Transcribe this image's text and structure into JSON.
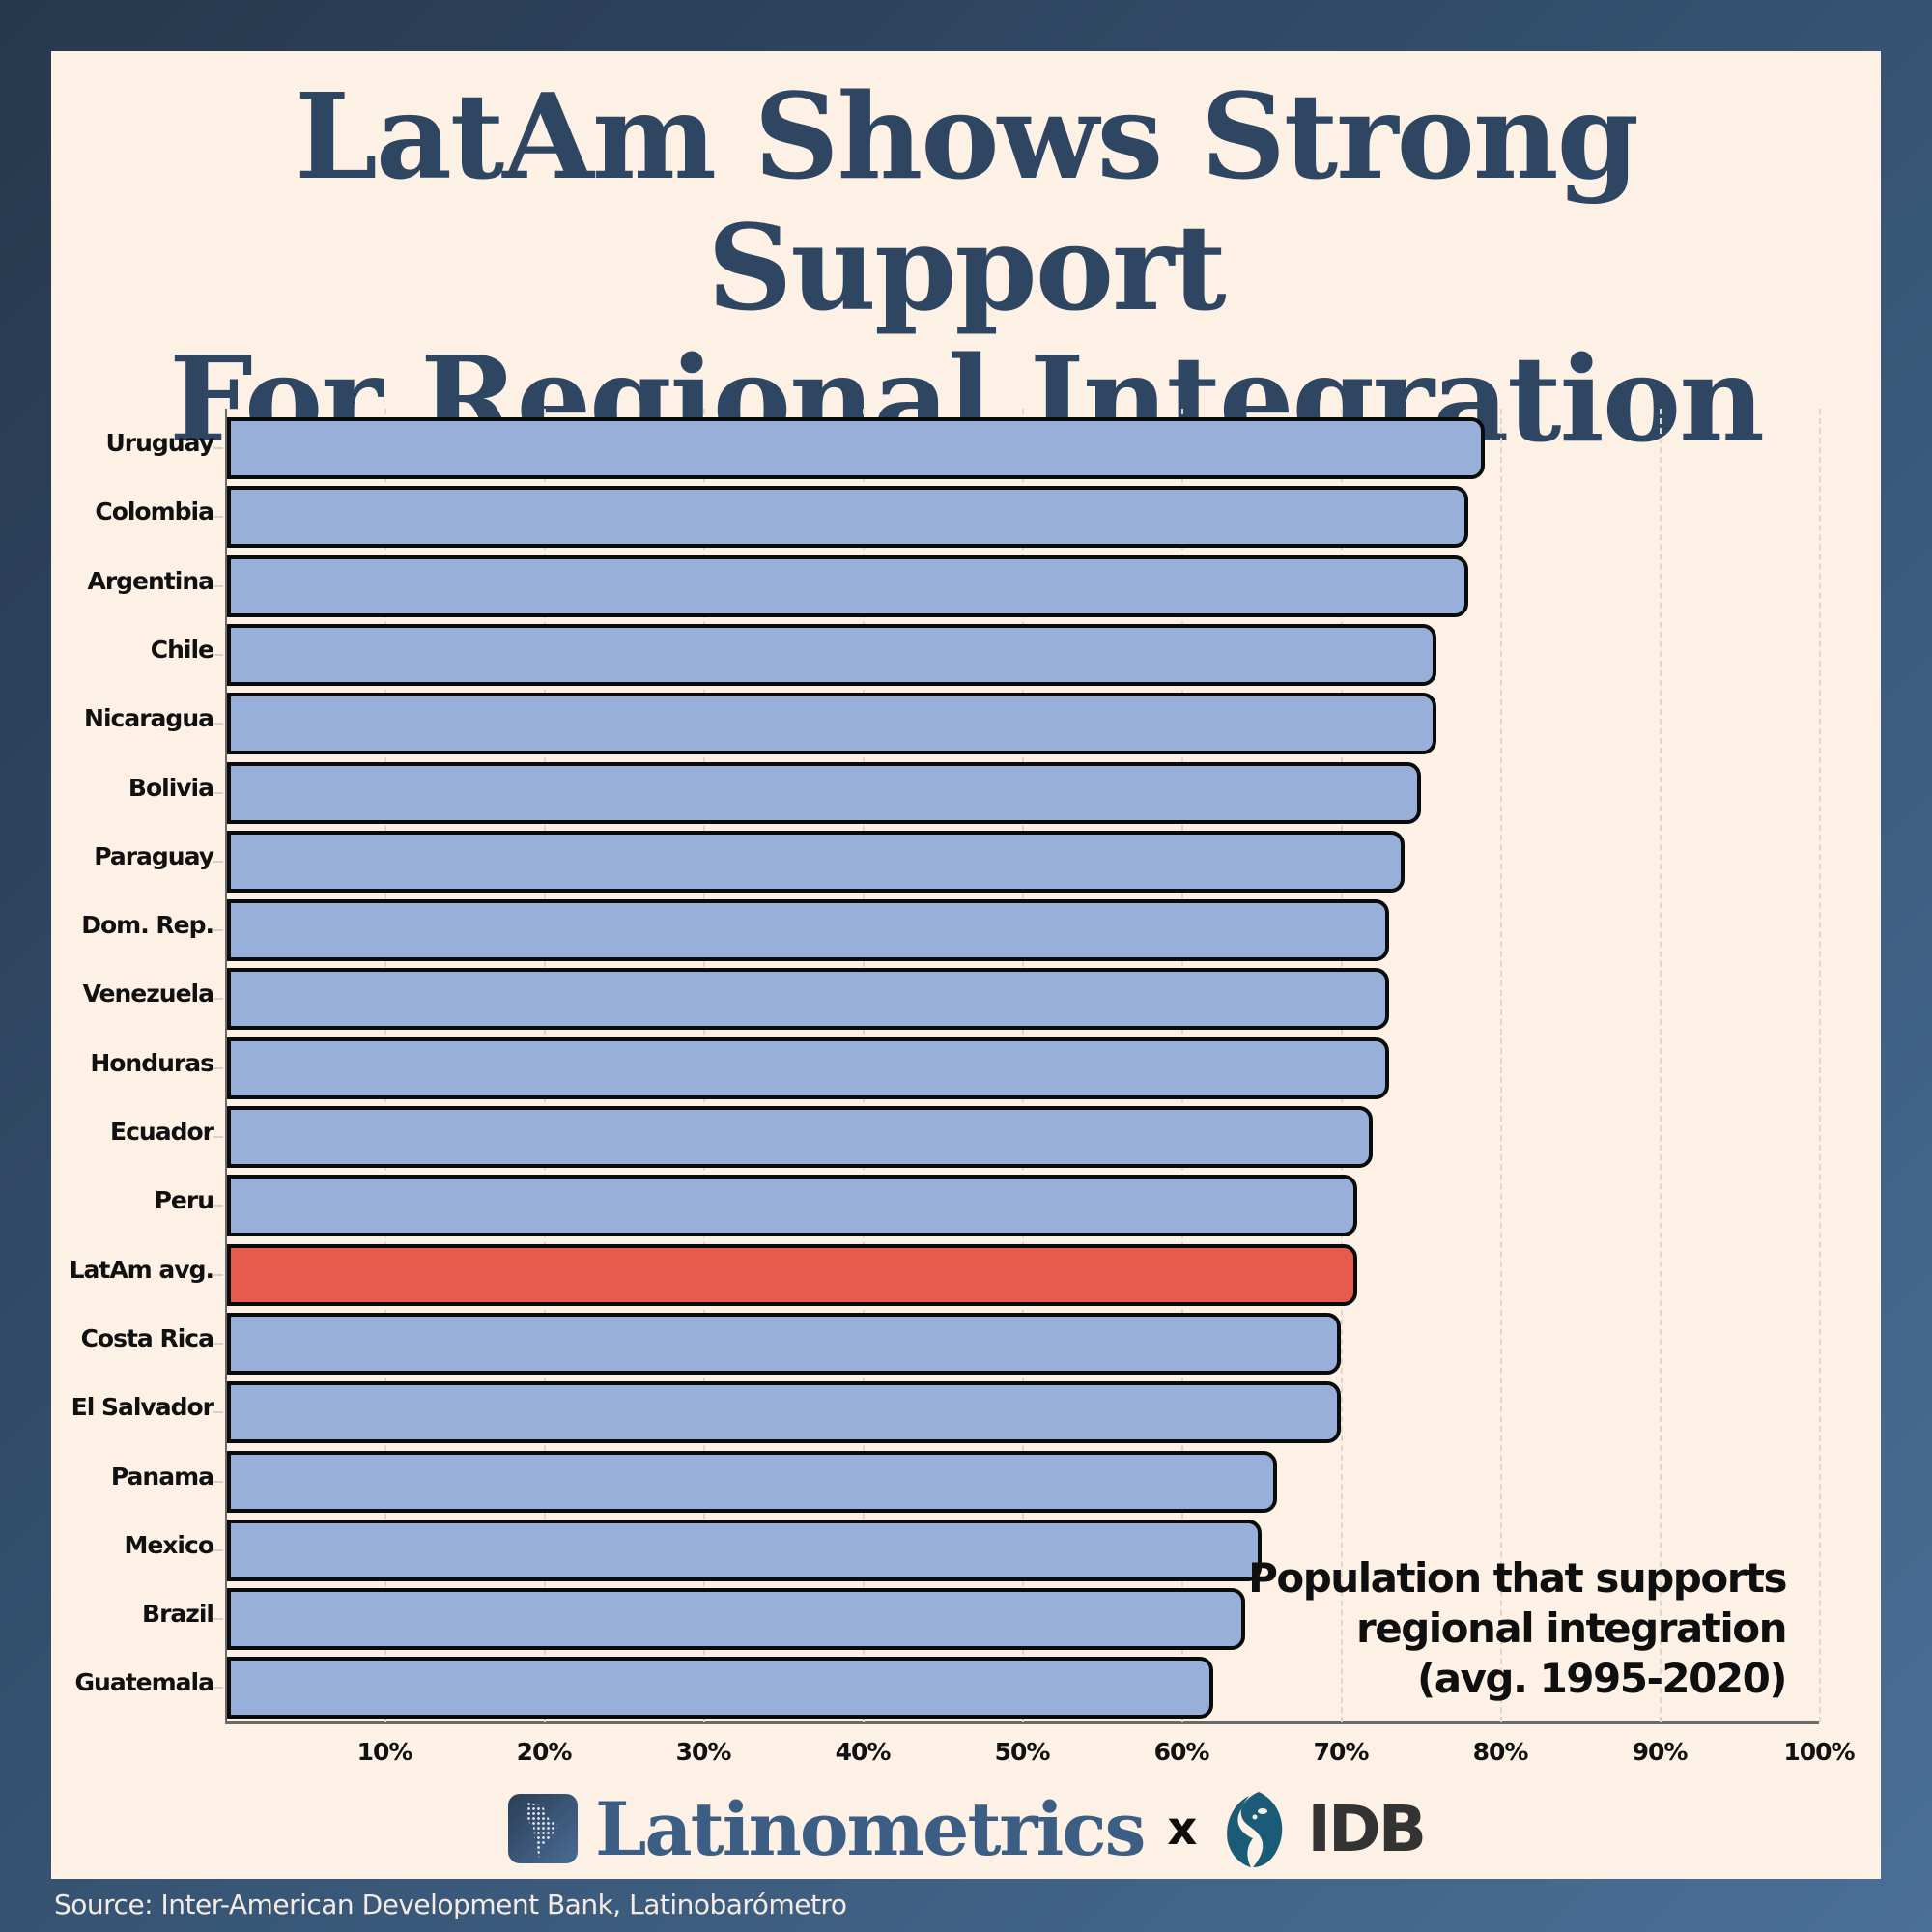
{
  "title": {
    "line1": "LatAm Shows Strong Support",
    "line2": "For Regional Integration"
  },
  "legend_note": {
    "line1": "Population that supports",
    "line2": "regional integration",
    "line3": "(avg. 1995-2020)"
  },
  "colors": {
    "bar": "#98b0d9",
    "highlight": "#e65b4e",
    "title": "#2e4661",
    "panel_bg": "#fdf1e6"
  },
  "x_ticks": [
    "10%",
    "20%",
    "30%",
    "40%",
    "50%",
    "60%",
    "70%",
    "80%",
    "90%",
    "100%"
  ],
  "brand": {
    "name": "Latinometrics",
    "separator": "x",
    "partner": "IDB"
  },
  "source": "Source: Inter-American Development Bank, Latinobarómetro",
  "chart_data": {
    "type": "bar",
    "orientation": "horizontal",
    "title": "LatAm Shows Strong Support For Regional Integration",
    "subtitle": "Population that supports regional integration (avg. 1995-2020)",
    "xlabel": "",
    "ylabel": "",
    "xlim": [
      0,
      100
    ],
    "unit": "%",
    "grid": "vertical dashed at 10% intervals",
    "highlight": "LatAm avg.",
    "categories": [
      "Uruguay",
      "Colombia",
      "Argentina",
      "Chile",
      "Nicaragua",
      "Bolivia",
      "Paraguay",
      "Dom. Rep.",
      "Venezuela",
      "Honduras",
      "Ecuador",
      "Peru",
      "LatAm avg.",
      "Costa Rica",
      "El Salvador",
      "Panama",
      "Mexico",
      "Brazil",
      "Guatemala"
    ],
    "values": [
      79,
      78,
      78,
      76,
      76,
      75,
      74,
      73,
      73,
      73,
      72,
      71,
      71,
      70,
      70,
      66,
      65,
      64,
      62
    ]
  }
}
